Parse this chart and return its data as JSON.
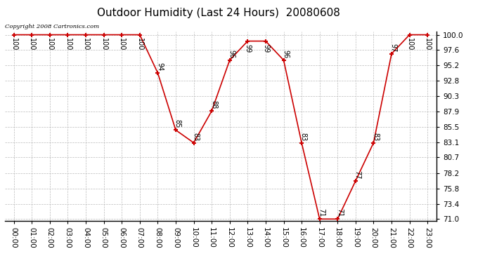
{
  "title": "Outdoor Humidity (Last 24 Hours)  20080608",
  "copyright_text": "Copyright 2008 Cartronics.com",
  "hours": [
    0,
    1,
    2,
    3,
    4,
    5,
    6,
    7,
    8,
    9,
    10,
    11,
    12,
    13,
    14,
    15,
    16,
    17,
    18,
    19,
    20,
    21,
    22,
    23
  ],
  "labels": [
    "00:00",
    "01:00",
    "02:00",
    "03:00",
    "04:00",
    "05:00",
    "06:00",
    "07:00",
    "08:00",
    "09:00",
    "10:00",
    "11:00",
    "12:00",
    "13:00",
    "14:00",
    "15:00",
    "16:00",
    "17:00",
    "18:00",
    "19:00",
    "20:00",
    "21:00",
    "22:00",
    "23:00"
  ],
  "values": [
    100,
    100,
    100,
    100,
    100,
    100,
    100,
    100,
    94,
    85,
    83,
    88,
    96,
    99,
    99,
    96,
    83,
    71,
    71,
    77,
    83,
    97,
    100,
    100
  ],
  "line_color": "#cc0000",
  "marker_color": "#cc0000",
  "background_color": "#ffffff",
  "grid_color": "#bbbbbb",
  "title_fontsize": 11,
  "ylim_min": 71.0,
  "ylim_max": 100.0,
  "yticks": [
    71.0,
    73.4,
    75.8,
    78.2,
    80.7,
    83.1,
    85.5,
    87.9,
    90.3,
    92.8,
    95.2,
    97.6,
    100.0
  ],
  "label_fontsize": 7,
  "tick_fontsize": 7.5
}
